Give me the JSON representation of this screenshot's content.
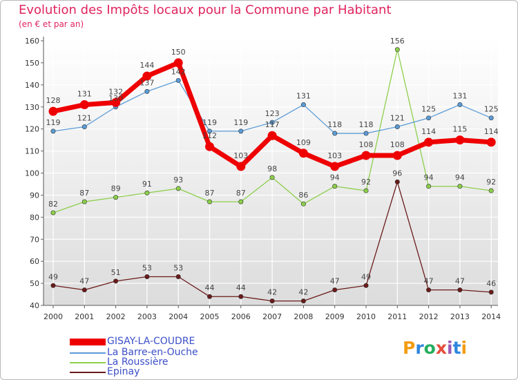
{
  "chart_data": {
    "type": "line",
    "title": "Evolution des Impôts locaux pour la Commune par Habitant",
    "subtitle": "(en € et par an)",
    "xlabel": "",
    "ylabel": "",
    "ylim": [
      40,
      160
    ],
    "yticks": [
      "40",
      "50",
      "60",
      "70",
      "80",
      "90",
      "100",
      "110",
      "120",
      "130",
      "140",
      "150",
      "160"
    ],
    "categories": [
      "2000",
      "2001",
      "2002",
      "2003",
      "2004",
      "2005",
      "2006",
      "2007",
      "2008",
      "2009",
      "2010",
      "2011",
      "2012",
      "2013",
      "2014"
    ],
    "grid": true,
    "legend_position": "bottom-left",
    "series": [
      {
        "name": "Epinay",
        "color": "#6b1a1a",
        "emphasis": false,
        "values": [
          49,
          47,
          51,
          53,
          53,
          44,
          44,
          42,
          42,
          47,
          49,
          96,
          47,
          47,
          46
        ],
        "labels": [
          "49",
          "47",
          "51",
          "53",
          "53",
          "44",
          "44",
          "42",
          "42",
          "47",
          "49",
          "96",
          "47",
          "47",
          "46"
        ]
      },
      {
        "name": "La Roussière",
        "color": "#8ccf4a",
        "emphasis": false,
        "values": [
          82,
          87,
          89,
          91,
          93,
          87,
          87,
          98,
          86,
          94,
          92,
          156,
          94,
          94,
          92
        ],
        "labels": [
          "82",
          "87",
          "89",
          "91",
          "93",
          "87",
          "87",
          "98",
          "86",
          "94",
          "92",
          "156",
          "94",
          "94",
          "92"
        ]
      },
      {
        "name": "La Barre-en-Ouche",
        "color": "#5b9bd5",
        "emphasis": false,
        "values": [
          119,
          121,
          130,
          137,
          142,
          119,
          119,
          123,
          131,
          118,
          118,
          121,
          125,
          131,
          125
        ],
        "labels": [
          "119",
          "121",
          "130",
          "137",
          "142",
          "119",
          "119",
          "123",
          "131",
          "118",
          "118",
          "121",
          "125",
          "131",
          "125"
        ]
      },
      {
        "name": "GISAY-LA-COUDRE",
        "color": "#ee0000",
        "emphasis": true,
        "values": [
          128,
          131,
          132,
          144,
          150,
          112,
          103,
          117,
          109,
          103,
          108,
          108,
          114,
          115,
          114
        ],
        "labels": [
          "128",
          "131",
          "132",
          "144",
          "150",
          "112",
          "103",
          "117",
          "109",
          "103",
          "108",
          "108",
          "114",
          "115",
          "114"
        ]
      }
    ]
  },
  "legend": [
    {
      "label": "GISAY-LA-COUDRE",
      "color": "#ee0000"
    },
    {
      "label": "La Barre-en-Ouche",
      "color": "#5b9bd5"
    },
    {
      "label": "La Roussière",
      "color": "#8ccf4a"
    },
    {
      "label": "Epinay",
      "color": "#6b1a1a"
    }
  ],
  "logo": {
    "text": "Proxiti",
    "letters": [
      {
        "ch": "P",
        "color": "#f39c12"
      },
      {
        "ch": "r",
        "color": "#2e86de"
      },
      {
        "ch": "o",
        "color": "#27ae60"
      },
      {
        "ch": "x",
        "color": "#e74c3c"
      },
      {
        "ch": "i",
        "color": "#9b59b6"
      },
      {
        "ch": "t",
        "color": "#2e86de"
      },
      {
        "ch": "i",
        "color": "#f39c12"
      }
    ]
  }
}
